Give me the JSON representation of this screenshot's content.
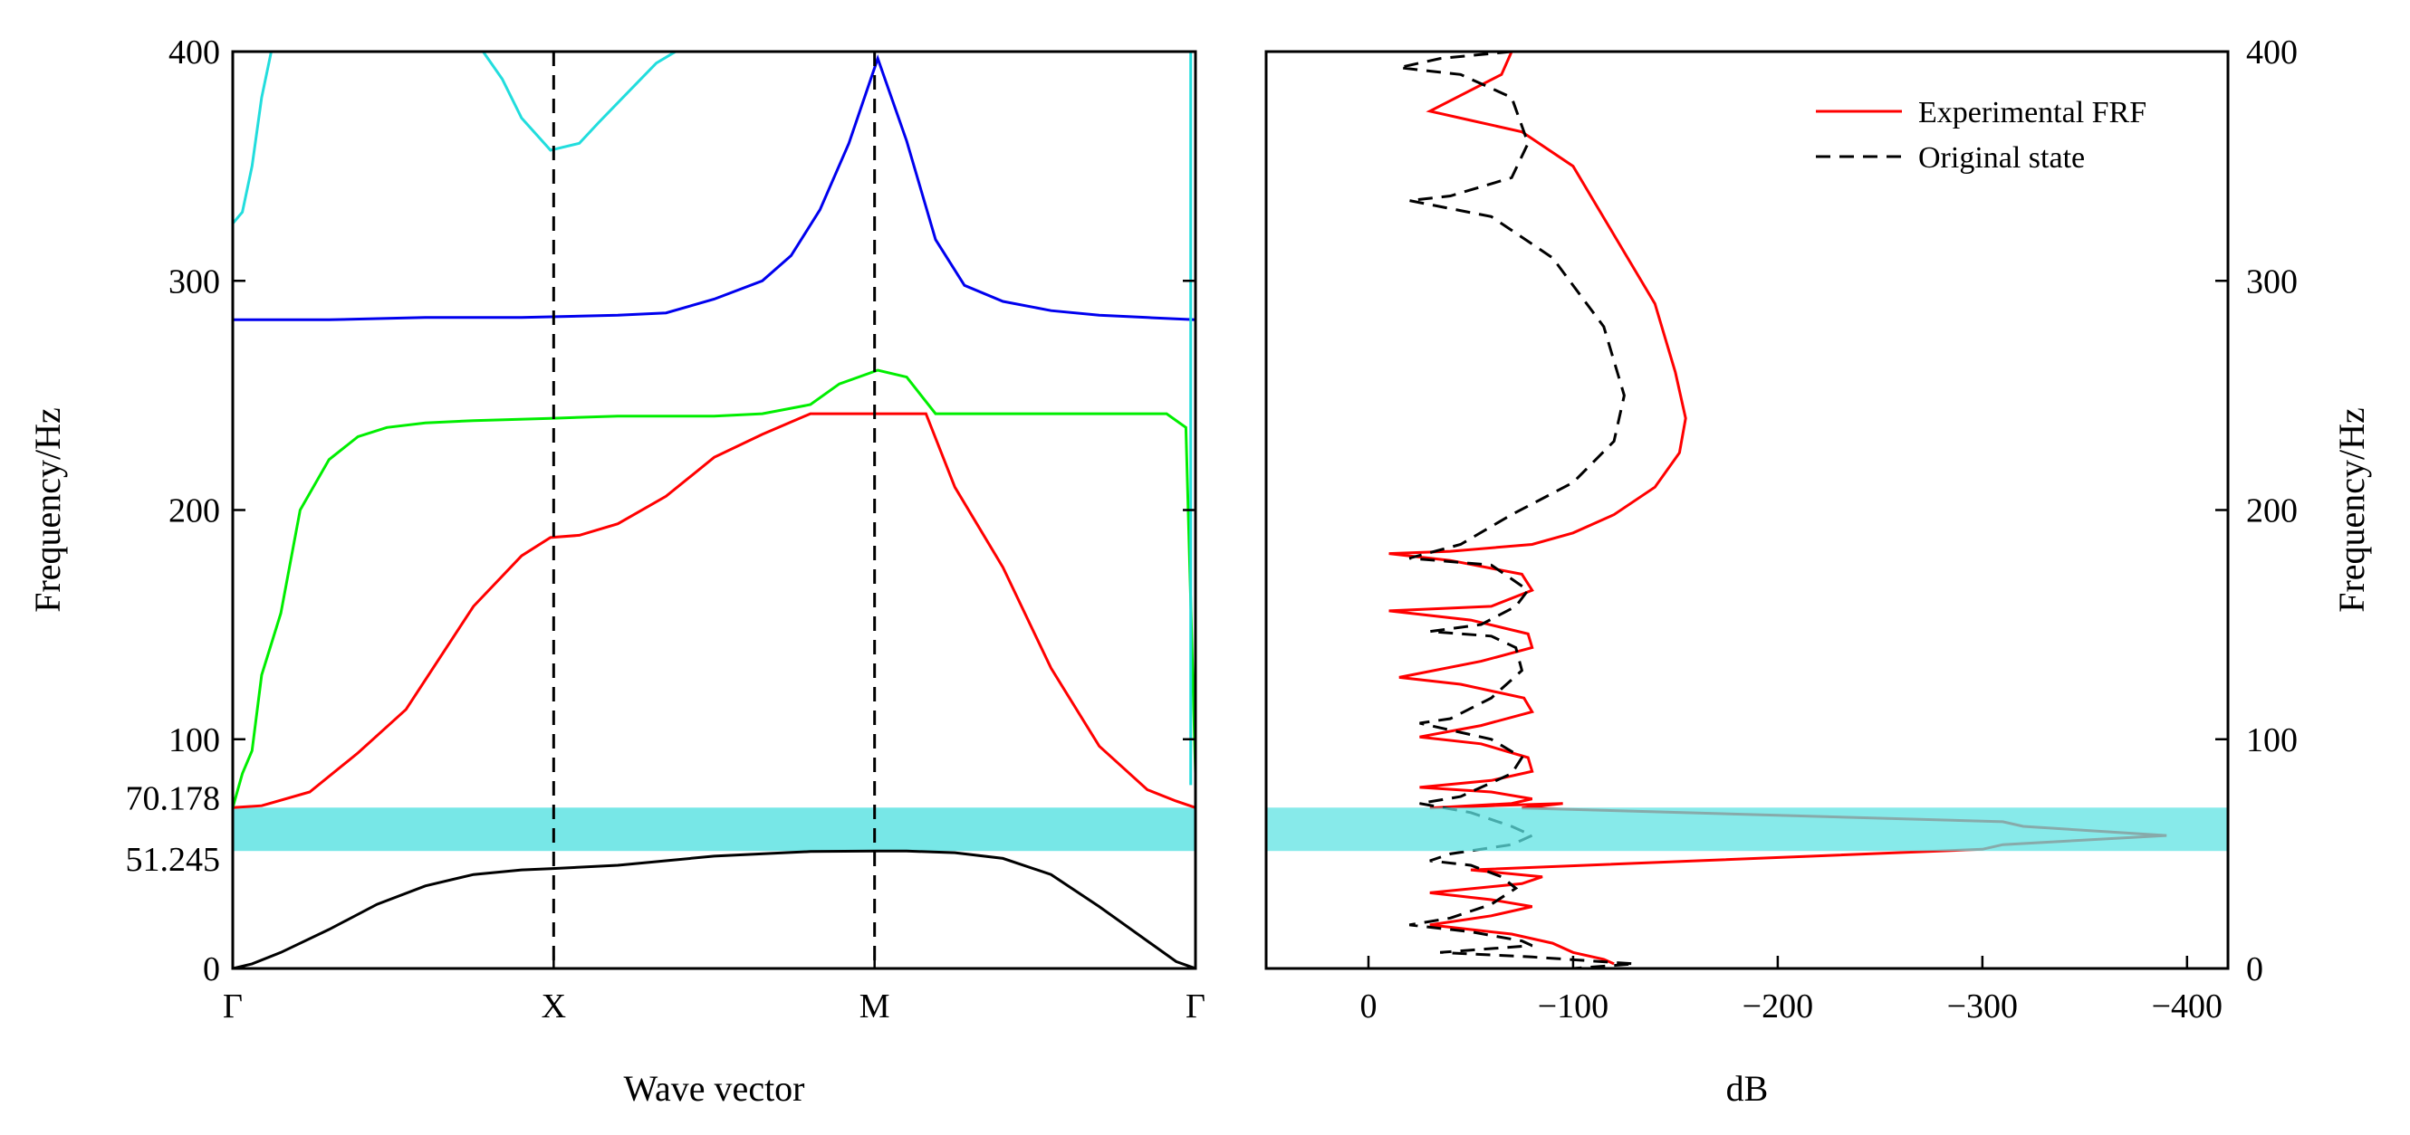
{
  "chart_data": [
    {
      "type": "line",
      "name": "dispersion",
      "xlabel": "Wave vector",
      "ylabel": "Frequency/Hz",
      "ylim": [
        0,
        400
      ],
      "y_ticks": [
        0,
        100,
        200,
        300,
        400
      ],
      "x_ticks": [
        "Γ",
        "X",
        "M",
        "Γ"
      ],
      "extra_y_labels": [
        "70.178",
        "51.245"
      ],
      "band_gap": [
        51.245,
        70.178
      ],
      "band_gap_color": "#5fe3e3",
      "high_symmetry_dashed": [
        "X",
        "M"
      ],
      "series": [
        {
          "name": "band-1",
          "color": "#000000",
          "x": [
            0,
            0.02,
            0.05,
            0.1,
            0.15,
            0.2,
            0.25,
            0.3,
            0.33,
            0.4,
            0.5,
            0.6,
            0.67,
            0.7,
            0.75,
            0.8,
            0.85,
            0.9,
            0.95,
            0.98,
            1.0
          ],
          "y": [
            0,
            2,
            7,
            17,
            28,
            36,
            41,
            43,
            43.5,
            45,
            49,
            51,
            51.245,
            51.2,
            50.5,
            48,
            41,
            27,
            12,
            3,
            0
          ]
        },
        {
          "name": "band-2",
          "color": "#ff0000",
          "x": [
            0,
            0.03,
            0.08,
            0.13,
            0.18,
            0.25,
            0.3,
            0.33,
            0.36,
            0.4,
            0.45,
            0.5,
            0.55,
            0.6,
            0.67,
            0.72,
            0.75,
            0.8,
            0.85,
            0.9,
            0.95,
            0.98,
            1.0
          ],
          "y": [
            70.178,
            71,
            77,
            94,
            113,
            158,
            180,
            188,
            189,
            194,
            206,
            223,
            233,
            242,
            242,
            242,
            210,
            175,
            131,
            97,
            78,
            73,
            70.178
          ]
        },
        {
          "name": "band-3",
          "color": "#00ee00",
          "x": [
            0,
            0.01,
            0.02,
            0.03,
            0.05,
            0.07,
            0.1,
            0.13,
            0.16,
            0.2,
            0.25,
            0.33,
            0.4,
            0.5,
            0.55,
            0.6,
            0.63,
            0.67,
            0.7,
            0.73,
            0.8,
            0.9,
            0.97,
            0.99,
            1.0
          ],
          "y": [
            70.178,
            85,
            95,
            128,
            155,
            200,
            222,
            232,
            236,
            238,
            239,
            240,
            241,
            241,
            242,
            246,
            255,
            261,
            258,
            242,
            242,
            242,
            242,
            236,
            85
          ]
        },
        {
          "name": "band-4",
          "color": "#0000ee",
          "x": [
            0,
            0.1,
            0.2,
            0.3,
            0.4,
            0.45,
            0.5,
            0.55,
            0.58,
            0.61,
            0.64,
            0.67,
            0.7,
            0.73,
            0.76,
            0.8,
            0.85,
            0.9,
            0.95,
            1.0
          ],
          "y": [
            283,
            283,
            284,
            284,
            285,
            286,
            292,
            300,
            311,
            331,
            360,
            397,
            361,
            318,
            298,
            291,
            287,
            285,
            284,
            283
          ]
        },
        {
          "name": "band-5",
          "color": "#22dddd",
          "x": [
            0,
            0.01,
            0.02,
            0.03,
            0.04
          ],
          "y": [
            325,
            330,
            350,
            380,
            400
          ]
        },
        {
          "name": "band-6",
          "color": "#22dddd",
          "x": [
            0.26,
            0.28,
            0.3,
            0.33,
            0.36,
            0.38,
            0.41,
            0.44,
            0.46
          ],
          "y": [
            400,
            388,
            371,
            357,
            360,
            369,
            382,
            395,
            400
          ]
        },
        {
          "name": "band-7",
          "color": "#22dddd",
          "x": [
            0.995,
            0.995
          ],
          "y": [
            400,
            80
          ]
        }
      ]
    },
    {
      "type": "line",
      "name": "frf",
      "xlabel": "dB",
      "ylabel": "Frequency/Hz",
      "xlim": [
        50,
        -420
      ],
      "x_ticks": [
        0,
        -100,
        -200,
        -300,
        -400
      ],
      "x_tick_labels": [
        "0",
        "−100",
        "−200",
        "−300",
        "−400"
      ],
      "ylim": [
        0,
        400
      ],
      "y_ticks": [
        0,
        100,
        200,
        300,
        400
      ],
      "band_gap": [
        51.245,
        70.178
      ],
      "band_gap_color": "#5fe3e3",
      "legend_position": "top-right",
      "series": [
        {
          "name": "Experimental FRF",
          "color": "#ff0000",
          "dash": "solid",
          "x": [
            -70,
            -65,
            -30,
            -50,
            -75,
            -100,
            -120,
            -140,
            -150,
            -155,
            -152,
            -140,
            -120,
            -100,
            -80,
            -40,
            -10,
            -40,
            -75,
            -80,
            -60,
            -10,
            -50,
            -78,
            -80,
            -55,
            -15,
            -45,
            -76,
            -80,
            -55,
            -25,
            -55,
            -78,
            -80,
            -60,
            -25,
            -60,
            -80,
            -70,
            -30,
            -60,
            -95,
            -75,
            -310,
            -320,
            -390,
            -310,
            -300,
            -50,
            -85,
            -75,
            -30,
            -60,
            -80,
            -60,
            -30,
            -70,
            -90,
            -100,
            -115,
            -120
          ],
          "y": [
            400,
            390,
            374,
            370,
            365,
            350,
            320,
            290,
            260,
            240,
            225,
            210,
            198,
            190,
            185,
            182,
            181,
            178,
            172,
            165,
            158,
            156,
            152,
            146,
            140,
            134,
            127,
            124,
            118,
            112,
            106,
            101,
            98,
            92,
            86,
            82,
            79,
            77,
            74,
            72,
            70,
            71,
            72,
            70,
            64,
            62,
            58,
            54,
            52,
            43,
            40,
            37,
            33,
            30,
            27,
            23,
            19,
            15,
            11,
            7,
            4,
            2
          ]
        },
        {
          "name": "Original state",
          "color": "#000000",
          "dash": "dashed",
          "x": [
            -70,
            -35,
            -15,
            -45,
            -70,
            -78,
            -70,
            -40,
            -20,
            -60,
            -90,
            -115,
            -125,
            -120,
            -100,
            -70,
            -45,
            -20,
            -60,
            -78,
            -72,
            -55,
            -30,
            -60,
            -72,
            -75,
            -60,
            -40,
            -25,
            -60,
            -75,
            -70,
            -45,
            -25,
            -50,
            -70,
            -80,
            -70,
            -40,
            -30,
            -50,
            -65,
            -72,
            -60,
            -40,
            -20,
            -50,
            -75,
            -80,
            -50,
            -35,
            -80,
            -130,
            -100
          ],
          "y": [
            400,
            397,
            393,
            390,
            380,
            360,
            345,
            337,
            335,
            328,
            310,
            280,
            250,
            230,
            212,
            198,
            185,
            179,
            176,
            165,
            158,
            150,
            147,
            145,
            140,
            130,
            118,
            109,
            107,
            100,
            92,
            85,
            75,
            72,
            68,
            62,
            58,
            54,
            50,
            47,
            45,
            40,
            35,
            28,
            22,
            19,
            16,
            12,
            10,
            8,
            7,
            5,
            2,
            0
          ]
        }
      ]
    }
  ]
}
